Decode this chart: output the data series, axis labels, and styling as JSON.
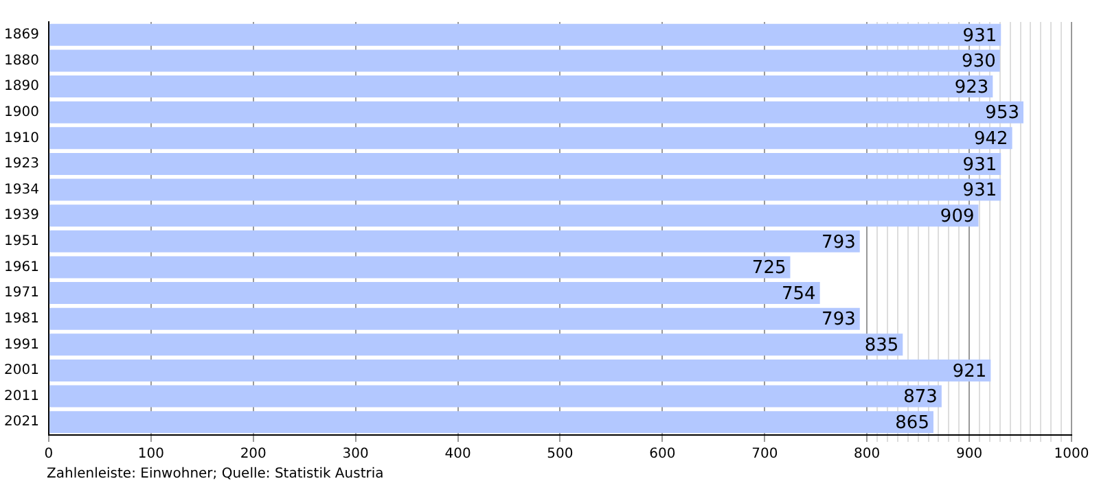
{
  "chart_data": {
    "type": "bar",
    "orientation": "horizontal",
    "categories": [
      "1869",
      "1880",
      "1890",
      "1900",
      "1910",
      "1923",
      "1934",
      "1939",
      "1951",
      "1961",
      "1971",
      "1981",
      "1991",
      "2001",
      "2011",
      "2021"
    ],
    "values": [
      931,
      930,
      923,
      953,
      942,
      931,
      931,
      909,
      793,
      725,
      754,
      793,
      835,
      921,
      873,
      865
    ],
    "color": "#b3c8ff",
    "xlim": [
      0,
      1000
    ],
    "xticks": [
      0,
      100,
      200,
      300,
      400,
      500,
      600,
      700,
      800,
      {
        "value": 810,
        "label": null
      },
      {
        "value": 820,
        "label": null
      },
      {
        "value": 830,
        "label": null
      },
      {
        "value": 840,
        "label": null
      },
      {
        "value": 850,
        "label": null
      },
      {
        "value": 860,
        "label": null
      },
      {
        "value": 870,
        "label": null
      },
      {
        "value": 880,
        "label": null
      },
      {
        "value": 890,
        "label": null
      },
      900,
      {
        "value": 910,
        "label": null
      },
      {
        "value": 920,
        "label": null
      },
      {
        "value": 930,
        "label": null
      },
      {
        "value": 940,
        "label": null
      },
      {
        "value": 950,
        "label": null
      },
      {
        "value": 960,
        "label": null
      },
      {
        "value": 970,
        "label": null
      },
      {
        "value": 980,
        "label": null
      },
      {
        "value": 990,
        "label": null
      },
      1000
    ],
    "grid": "x",
    "data_labels": true,
    "legend": false,
    "annotations": [
      "Zahlenleiste: Einwohner; Quelle: Statistik Austria"
    ]
  }
}
